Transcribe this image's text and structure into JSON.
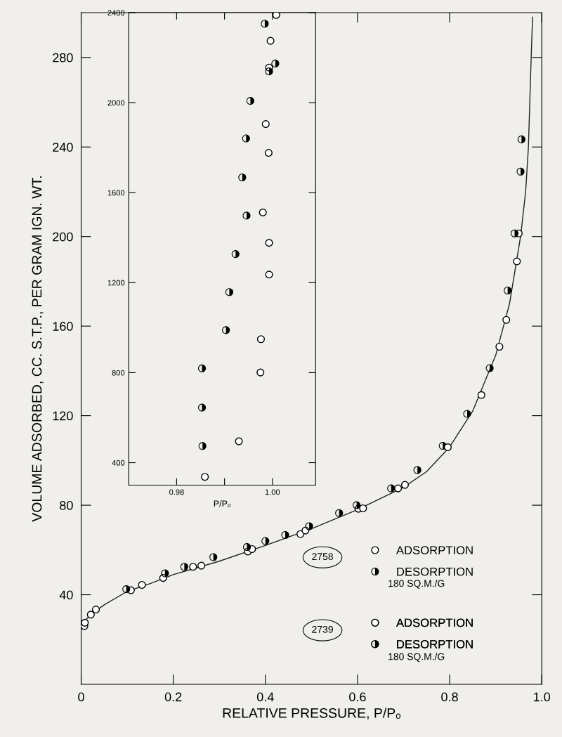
{
  "chart_data": [
    {
      "type": "scatter",
      "xlabel": "RELATIVE PRESSURE, P/Pₒ",
      "ylabel": "VOLUME ADSORBED, CC. S.T.P., PER GRAM IGN. WT.",
      "xlim": [
        0,
        1.0
      ],
      "ylim": [
        0,
        300
      ],
      "xticks": [
        0,
        {
          "value": 0.2,
          "label": "0.2"
        },
        {
          "value": 0.4,
          "label": "0.4"
        },
        {
          "value": 0.6,
          "label": "0.6"
        },
        {
          "value": 0.8,
          "label": "0.8"
        },
        {
          "value": 1.0,
          "label": "1.0"
        }
      ],
      "yticks": [
        40,
        80,
        120,
        160,
        200,
        240,
        280
      ],
      "marker": "circle",
      "grid": false,
      "legend": "bottom right",
      "annotations": [
        "2758",
        "180 SQ.M./G",
        "2739",
        "180 SQ.M./G"
      ],
      "series": [
        {
          "type": "line",
          "color": "#222222",
          "marker": "none",
          "line_style": "solid",
          "x": [
            0.002,
            0.02,
            0.05,
            0.1,
            0.15,
            0.2,
            0.3,
            0.4,
            0.5,
            0.6,
            0.7,
            0.75,
            0.8,
            0.85,
            0.9,
            0.93,
            0.954,
            0.965,
            0.971,
            0.977,
            0.98
          ],
          "values": [
            27,
            31,
            35.5,
            41.5,
            45,
            49,
            55,
            62,
            69.5,
            78,
            88,
            95,
            106,
            122,
            147,
            170,
            200,
            220,
            240,
            280,
            298
          ]
        },
        {
          "name": "ADSORPTION",
          "color": "#ffffff",
          "x": [
            0.007,
            0.008,
            0.021,
            0.032,
            0.108,
            0.132,
            0.178,
            0.243,
            0.261,
            0.362,
            0.476,
            0.487,
            0.602,
            0.612,
            0.688,
            0.703,
            0.908,
            0.95
          ],
          "values": [
            26,
            27.5,
            31.1,
            33.4,
            42.0,
            44.4,
            47.5,
            52.5,
            53.0,
            59.3,
            67.1,
            68.7,
            78.4,
            78.6,
            87.5,
            89.1,
            150.8,
            201.4
          ]
        },
        {
          "name": "DESORPTION",
          "color": "#000000",
          "x": [
            0.182,
            0.287,
            0.4,
            0.443,
            0.495,
            0.56,
            0.598,
            0.673,
            0.73,
            0.785,
            0.838,
            0.887,
            0.926,
            0.941,
            0.954,
            0.956
          ],
          "values": [
            49.6,
            56.8,
            64.0,
            66.7,
            70.6,
            76.5,
            80.0,
            87.5,
            95.7,
            106.5,
            120.8,
            141.2,
            175.9,
            201.4,
            229.0,
            243.4
          ]
        },
        {
          "name": "ADSORPTION",
          "color": "#ffffff",
          "x": [
            0.371,
            0.796,
            0.869,
            0.923,
            0.946
          ],
          "values": [
            60.4,
            105.9,
            129.2,
            162.8,
            188.9
          ]
        },
        {
          "name": "DESORPTION",
          "color": "#000000",
          "x": [
            0.098,
            0.224,
            0.36
          ],
          "values": [
            42.5,
            52.5,
            61.3
          ]
        }
      ]
    },
    {
      "type": "scatter",
      "xlabel": "P/Pₒ",
      "xlim": [
        0.97,
        1.009
      ],
      "ylim": [
        300,
        2400
      ],
      "xticks": [
        {
          "value": 0.98,
          "label": "0.98"
        },
        {
          "value": 0.99,
          "label": null
        },
        {
          "value": 1.0,
          "label": "1.00"
        }
      ],
      "yticks": [
        400,
        800,
        1200,
        1600,
        2000,
        2400
      ],
      "marker": "circle",
      "grid": false,
      "series": [
        {
          "color": "#ffffff",
          "x": [
            1.0008,
            0.9996,
            0.9993,
            0.9986,
            0.9992,
            0.998,
            0.9993,
            0.9993,
            0.9976,
            0.9975,
            0.993,
            0.9859
          ],
          "values": [
            2390,
            2275,
            2156,
            1905,
            1777,
            1512,
            1377,
            1236,
            949,
            801,
            495,
            337
          ]
        },
        {
          "color": "#000000",
          "x": [
            0.9984,
            1.0006,
            0.9993,
            0.9954,
            0.9945,
            0.9937,
            0.9946,
            0.9923,
            0.991,
            0.9903,
            0.9853,
            0.9853,
            0.9854
          ],
          "values": [
            2351,
            2174,
            2139,
            2008,
            1841,
            1668,
            1498,
            1327,
            1158,
            989,
            819,
            645,
            474
          ]
        }
      ]
    }
  ]
}
